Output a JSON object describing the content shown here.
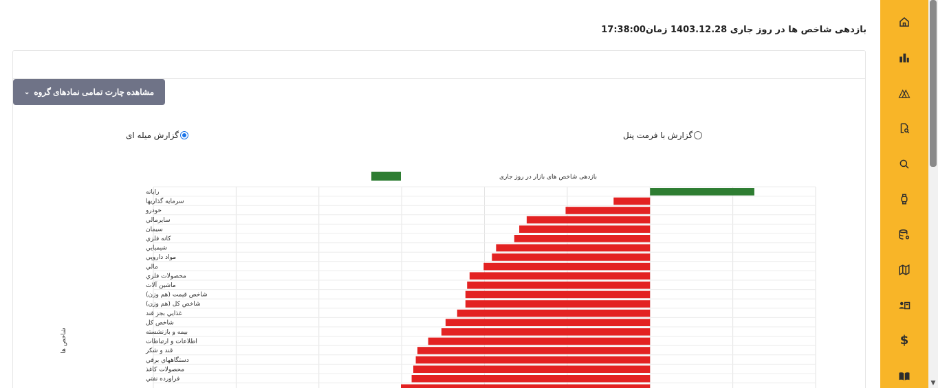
{
  "header": {
    "title": "بازدهی شاخص ها در روز جاری 1403.12.28 زمان17:38:00"
  },
  "panel": {
    "group_button_label": "مشاهده چارت تمامی نمادهای گروه",
    "radio_bar_label": "گزارش میله ای",
    "radio_panel_label": "گزارش با فرمت پنل"
  },
  "sidebar": {
    "icons": [
      "home-icon",
      "buildings-icon",
      "triangles-icon",
      "file-search-icon",
      "search-icon",
      "watch-icon",
      "database-gear-icon",
      "map-icon",
      "user-card-icon",
      "dollar-icon",
      "book-icon"
    ]
  },
  "colors": {
    "sidebar": "#f8b528",
    "positive": "#2e7d32",
    "negative": "#e32222",
    "button": "#6f7387"
  },
  "chart_data": {
    "type": "bar",
    "orientation": "horizontal",
    "title": "",
    "legend": {
      "label": "بازدهی شاخص های بازار در روز جاری",
      "placement": "top-center"
    },
    "ylabel": "شاخص ها",
    "xlabel": "",
    "xlim": [
      -6,
      2
    ],
    "grid": true,
    "categories": [
      "رایانه",
      "سرمایه گذاریها",
      "خودرو",
      "سایرمالي",
      "سیمان",
      "کانه فلزي",
      "شیمیایي",
      "مواد داروپي",
      "مالي",
      "محصولات فلزي",
      "ماشین آلات",
      "شاخص قیمت (هم وزن)",
      "شاخص کل (هم وزن)",
      "غذایي بجز قند",
      "شاخص کل",
      "بیمه و بازنشسته",
      "اطلاعات و ارتباطات",
      "قند و شکر",
      "دستگاههاي برقي",
      "محصولات کاغذ",
      "فراورده نفتي"
    ],
    "values": [
      1.26,
      -0.44,
      -1.02,
      -1.49,
      -1.58,
      -1.64,
      -1.86,
      -1.91,
      -2.01,
      -2.18,
      -2.21,
      -2.23,
      -2.23,
      -2.33,
      -2.47,
      -2.52,
      -2.68,
      -2.81,
      -2.83,
      -2.86,
      -2.88
    ]
  }
}
